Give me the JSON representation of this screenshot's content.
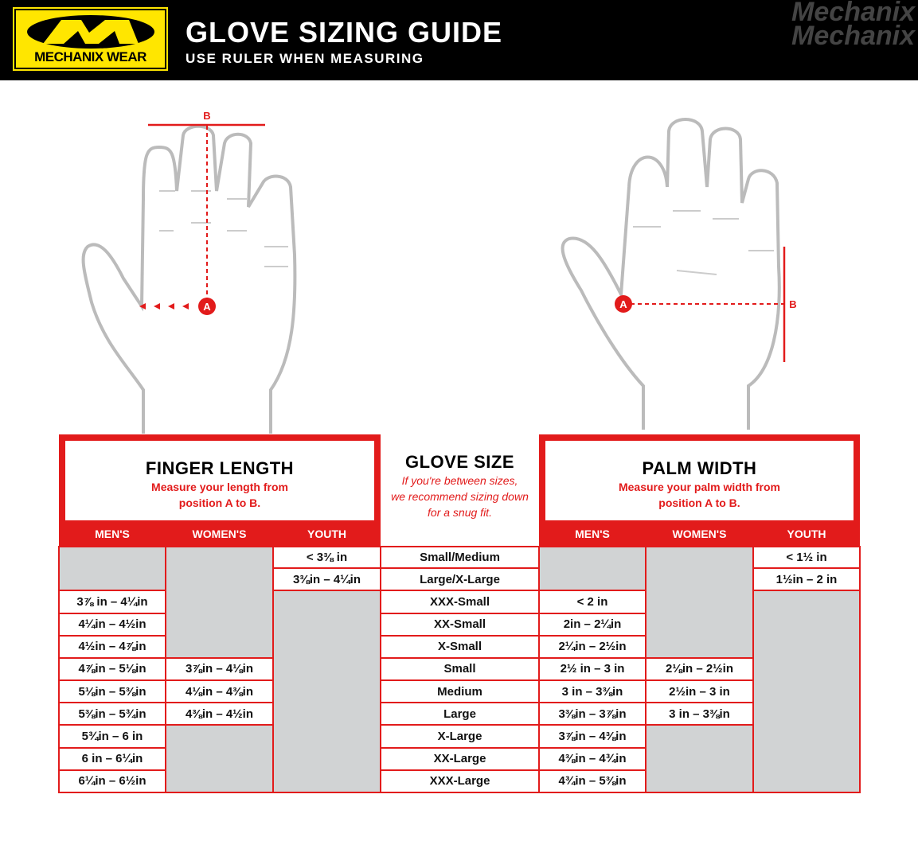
{
  "header": {
    "brand": "MECHANIX WEAR",
    "title": "GLOVE SIZING GUIDE",
    "subtitle": "USE RULER WHEN MEASURING",
    "watermark": "Mechanix",
    "colors": {
      "header_bg": "#000000",
      "logo_yellow": "#ffe600",
      "accent_red": "#e21b1b",
      "empty_cell": "#d1d3d4"
    }
  },
  "diagrams": {
    "left": {
      "point_a": "A",
      "point_b": "B"
    },
    "right": {
      "point_a": "A",
      "point_b": "B"
    }
  },
  "finger": {
    "title": "FINGER LENGTH",
    "desc1": "Measure your length from",
    "desc2": "position A to B.",
    "cols": [
      "MEN'S",
      "WOMEN'S",
      "YOUTH"
    ]
  },
  "glove": {
    "title": "GLOVE SIZE",
    "note1": "If you're between sizes,",
    "note2": "we recommend sizing down",
    "note3": "for a snug fit."
  },
  "palm": {
    "title": "PALM WIDTH",
    "desc1": "Measure your palm width from",
    "desc2": "position A to B.",
    "cols": [
      "MEN'S",
      "WOMEN'S",
      "YOUTH"
    ]
  },
  "rows": [
    {
      "size": "Small/Medium",
      "finger": {
        "men": null,
        "women": null,
        "youth": "< 3⅜ in"
      },
      "palm": {
        "men": null,
        "women": null,
        "youth": "< 1½ in"
      }
    },
    {
      "size": "Large/X-Large",
      "finger": {
        "men": null,
        "women": null,
        "youth": "3⅜in – 4¼in"
      },
      "palm": {
        "men": null,
        "women": null,
        "youth": "1½in – 2 in"
      }
    },
    {
      "size": "XXX-Small",
      "finger": {
        "men": "3⅞ in – 4¼in",
        "women": null,
        "youth": null
      },
      "palm": {
        "men": "< 2 in",
        "women": null,
        "youth": null
      }
    },
    {
      "size": "XX-Small",
      "finger": {
        "men": "4¼in – 4½in",
        "women": null,
        "youth": null
      },
      "palm": {
        "men": "2in – 2¼in",
        "women": null,
        "youth": null
      }
    },
    {
      "size": "X-Small",
      "finger": {
        "men": "4½in – 4⅞in",
        "women": null,
        "youth": null
      },
      "palm": {
        "men": "2¼in – 2½in",
        "women": null,
        "youth": null
      }
    },
    {
      "size": "Small",
      "finger": {
        "men": "4⅞in – 5⅛in",
        "women": "3⅞in – 4⅛in",
        "youth": null
      },
      "palm": {
        "men": "2½ in – 3 in",
        "women": "2⅛in – 2½in",
        "youth": null
      }
    },
    {
      "size": "Medium",
      "finger": {
        "men": "5⅛in – 5⅜in",
        "women": "4⅛in – 4⅜in",
        "youth": null
      },
      "palm": {
        "men": "3 in – 3⅜in",
        "women": "2½in – 3 in",
        "youth": null
      }
    },
    {
      "size": "Large",
      "finger": {
        "men": "5⅜in – 5¾in",
        "women": "4⅜in – 4½in",
        "youth": null
      },
      "palm": {
        "men": "3⅜in – 3⅞in",
        "women": "3 in – 3⅜in",
        "youth": null
      }
    },
    {
      "size": "X-Large",
      "finger": {
        "men": "5¾in – 6 in",
        "women": null,
        "youth": null
      },
      "palm": {
        "men": "3⅞in – 4⅜in",
        "women": null,
        "youth": null
      }
    },
    {
      "size": "XX-Large",
      "finger": {
        "men": "6 in – 6¼in",
        "women": null,
        "youth": null
      },
      "palm": {
        "men": "4⅜in – 4¾in",
        "women": null,
        "youth": null
      }
    },
    {
      "size": "XXX-Large",
      "finger": {
        "men": "6¼in – 6½in",
        "women": null,
        "youth": null
      },
      "palm": {
        "men": "4¾in – 5⅜in",
        "women": null,
        "youth": null
      }
    }
  ]
}
